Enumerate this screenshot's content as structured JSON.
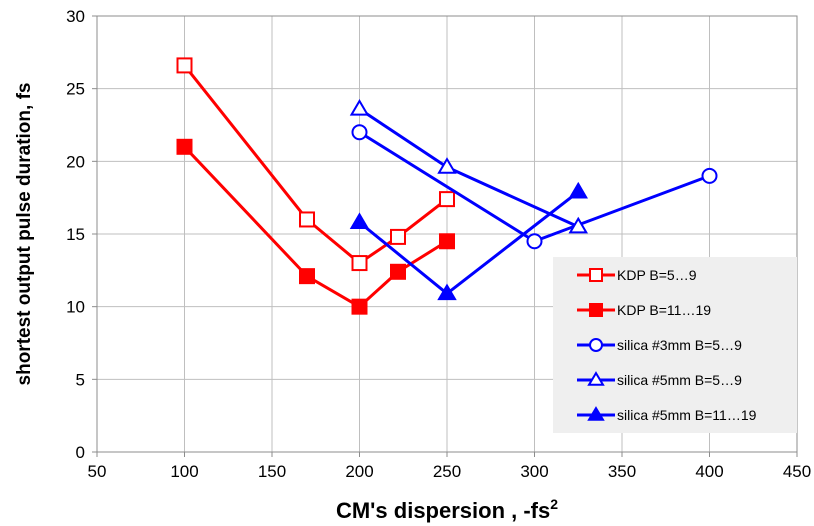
{
  "chart_data": {
    "type": "line",
    "title": "",
    "xlabel": "CM's dispersion , -fs",
    "xlabel_superscript": "2",
    "ylabel": "shortest  output pulse duration, fs",
    "xlim": [
      50,
      450
    ],
    "ylim": [
      0,
      30
    ],
    "xticks": [
      "50",
      "100",
      "150",
      "200",
      "250",
      "300",
      "350",
      "400",
      "450"
    ],
    "yticks": [
      "0",
      "5",
      "10",
      "15",
      "20",
      "25",
      "30"
    ],
    "grid": true,
    "legend_position": "bottom-right",
    "series": [
      {
        "name": "KDP B=5…9",
        "color": "#ff0000",
        "marker": "square",
        "filled": false,
        "x": [
          100,
          170,
          200,
          222,
          250
        ],
        "y": [
          26.6,
          16.0,
          13.0,
          14.8,
          17.4
        ]
      },
      {
        "name": "KDP B=11…19",
        "color": "#ff0000",
        "marker": "square",
        "filled": true,
        "x": [
          100,
          170,
          200,
          222,
          250
        ],
        "y": [
          21.0,
          12.1,
          10.0,
          12.4,
          14.5
        ]
      },
      {
        "name": "silica #3mm  B=5…9",
        "color": "#0000ff",
        "marker": "circle",
        "filled": false,
        "x": [
          200,
          300,
          400
        ],
        "y": [
          22.0,
          14.5,
          19.0
        ]
      },
      {
        "name": "silica #5mm B=5…9",
        "color": "#0000ff",
        "marker": "triangle",
        "filled": false,
        "x": [
          200,
          250,
          325
        ],
        "y": [
          23.6,
          19.6,
          15.5
        ]
      },
      {
        "name": "silica #5mm B=11…19",
        "color": "#0000ff",
        "marker": "triangle",
        "filled": true,
        "x": [
          200,
          250,
          325
        ],
        "y": [
          15.8,
          10.9,
          17.9
        ]
      }
    ]
  }
}
